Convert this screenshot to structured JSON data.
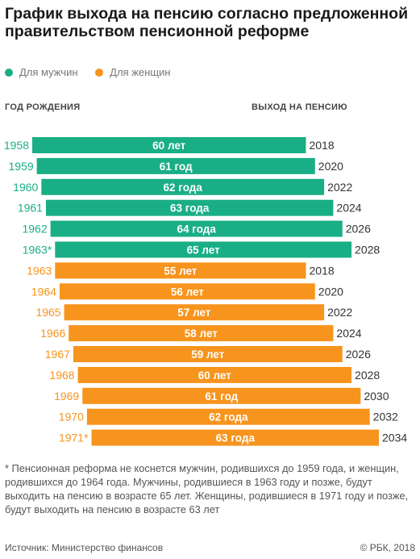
{
  "title": "График выхода на пенсию согласно предложенной правительством пенсионной реформе",
  "legend": {
    "men": "Для мужчин",
    "women": "Для женщин"
  },
  "headers": {
    "birth": "ГОД РОЖДЕНИЯ",
    "retire": "ВЫХОД НА ПЕНСИЮ"
  },
  "colors": {
    "men": "#1aae86",
    "women": "#f7941d"
  },
  "chart_data": {
    "type": "bar",
    "series": [
      {
        "name": "Для мужчин",
        "birth_years": [
          "1958",
          "1959",
          "1960",
          "1961",
          "1962",
          "1963*"
        ],
        "retire_years": [
          "2018",
          "2020",
          "2022",
          "2024",
          "2026",
          "2028"
        ],
        "age_labels": [
          "60 лет",
          "61 год",
          "62 года",
          "63 года",
          "64 года",
          "65 лет"
        ],
        "ages": [
          60,
          61,
          62,
          63,
          64,
          65
        ]
      },
      {
        "name": "Для женщин",
        "birth_years": [
          "1963",
          "1964",
          "1965",
          "1966",
          "1967",
          "1968",
          "1969",
          "1970",
          "1971*"
        ],
        "retire_years": [
          "2018",
          "2020",
          "2022",
          "2024",
          "2026",
          "2028",
          "2030",
          "2032",
          "2034"
        ],
        "age_labels": [
          "55 лет",
          "56 лет",
          "57 лет",
          "58 лет",
          "59 лет",
          "60 лет",
          "61 год",
          "62 года",
          "63 года"
        ],
        "ages": [
          55,
          56,
          57,
          58,
          59,
          60,
          61,
          62,
          63
        ]
      }
    ],
    "xlabel": "ГОД РОЖДЕНИЯ",
    "ylabel": "ВЫХОД НА ПЕНСИЮ",
    "x_range": [
      1958,
      2034
    ],
    "grid": false,
    "legend_position": "top-left"
  },
  "note": "* Пенсионная реформа не коснется мужчин, родившихся до 1959 года, и женщин, родившихся до 1964 года. Мужчины, родившиеся в 1963 году и позже, будут выходить на пенсию в возрасте 65 лет. Женщины, родившиеся в 1971 году и позже, будут выходить на пенсию в возрасте 63 лет",
  "footer": {
    "source": "Источник: Министерство финансов",
    "copyright": "© РБК, 2018"
  }
}
